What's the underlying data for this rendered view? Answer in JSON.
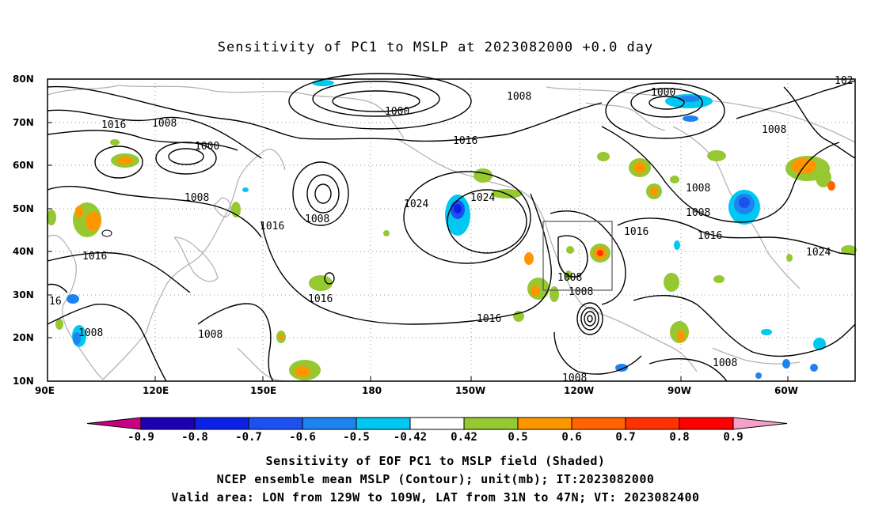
{
  "title": "Sensitivity of PC1 to MSLP at 2023082000 +0.0 day",
  "lat_ticks": [
    "80N",
    "70N",
    "60N",
    "50N",
    "40N",
    "30N",
    "20N",
    "10N"
  ],
  "lon_ticks": [
    "90E",
    "120E",
    "150E",
    "180",
    "150W",
    "120W",
    "90W",
    "60W"
  ],
  "contour_labels": [
    {
      "t": "1000",
      "k": "c1"
    },
    {
      "t": "1008",
      "k": "c2"
    },
    {
      "t": "1000",
      "k": "c3"
    },
    {
      "t": "1016",
      "k": "c4"
    },
    {
      "t": "1008",
      "k": "c5"
    },
    {
      "t": "1000",
      "k": "c6"
    },
    {
      "t": "1016",
      "k": "c7"
    },
    {
      "t": "1008",
      "k": "c8"
    },
    {
      "t": "1024",
      "k": "c9"
    },
    {
      "t": "1024",
      "k": "c10"
    },
    {
      "t": "1008",
      "k": "c11"
    },
    {
      "t": "1016",
      "k": "c12"
    },
    {
      "t": "1008",
      "k": "c13"
    },
    {
      "t": "1016",
      "k": "c14"
    },
    {
      "t": "1008",
      "k": "c15"
    },
    {
      "t": "1016",
      "k": "c16"
    },
    {
      "t": "1008",
      "k": "c17"
    },
    {
      "t": "1016",
      "k": "c18"
    },
    {
      "t": "1008",
      "k": "c19"
    },
    {
      "t": "1024",
      "k": "c20"
    },
    {
      "t": "1016",
      "k": "c21"
    },
    {
      "t": "1008",
      "k": "c22"
    },
    {
      "t": "1008",
      "k": "c23"
    },
    {
      "t": "1008",
      "k": "c24"
    },
    {
      "t": "1016",
      "k": "c25"
    },
    {
      "t": "1008",
      "k": "c26"
    },
    {
      "t": "16",
      "k": "c27"
    },
    {
      "t": "1008",
      "k": "c28"
    },
    {
      "t": "1008",
      "k": "c29"
    },
    {
      "t": "102",
      "k": "c30"
    }
  ],
  "colorbar": {
    "labels": [
      "-0.9",
      "-0.8",
      "-0.7",
      "-0.6",
      "-0.5",
      "-0.42",
      "0.42",
      "0.5",
      "0.6",
      "0.7",
      "0.8",
      "0.9"
    ],
    "colors": [
      "#c80083",
      "#1e00b4",
      "#0a22e6",
      "#1e50f0",
      "#1e82f0",
      "#00c8f0",
      "#ffffff",
      "#96c832",
      "#ff9600",
      "#ff6400",
      "#ff3200",
      "#ff0000",
      "#f5a0c8"
    ]
  },
  "captions": {
    "line1": "Sensitivity of EOF PC1 to MSLP field (Shaded)",
    "line2": "NCEP ensemble mean MSLP (Contour); unit(mb); IT:2023082000",
    "line3": "Valid area: LON from 129W to 109W, LAT from 31N to 47N; VT: 2023082400"
  }
}
